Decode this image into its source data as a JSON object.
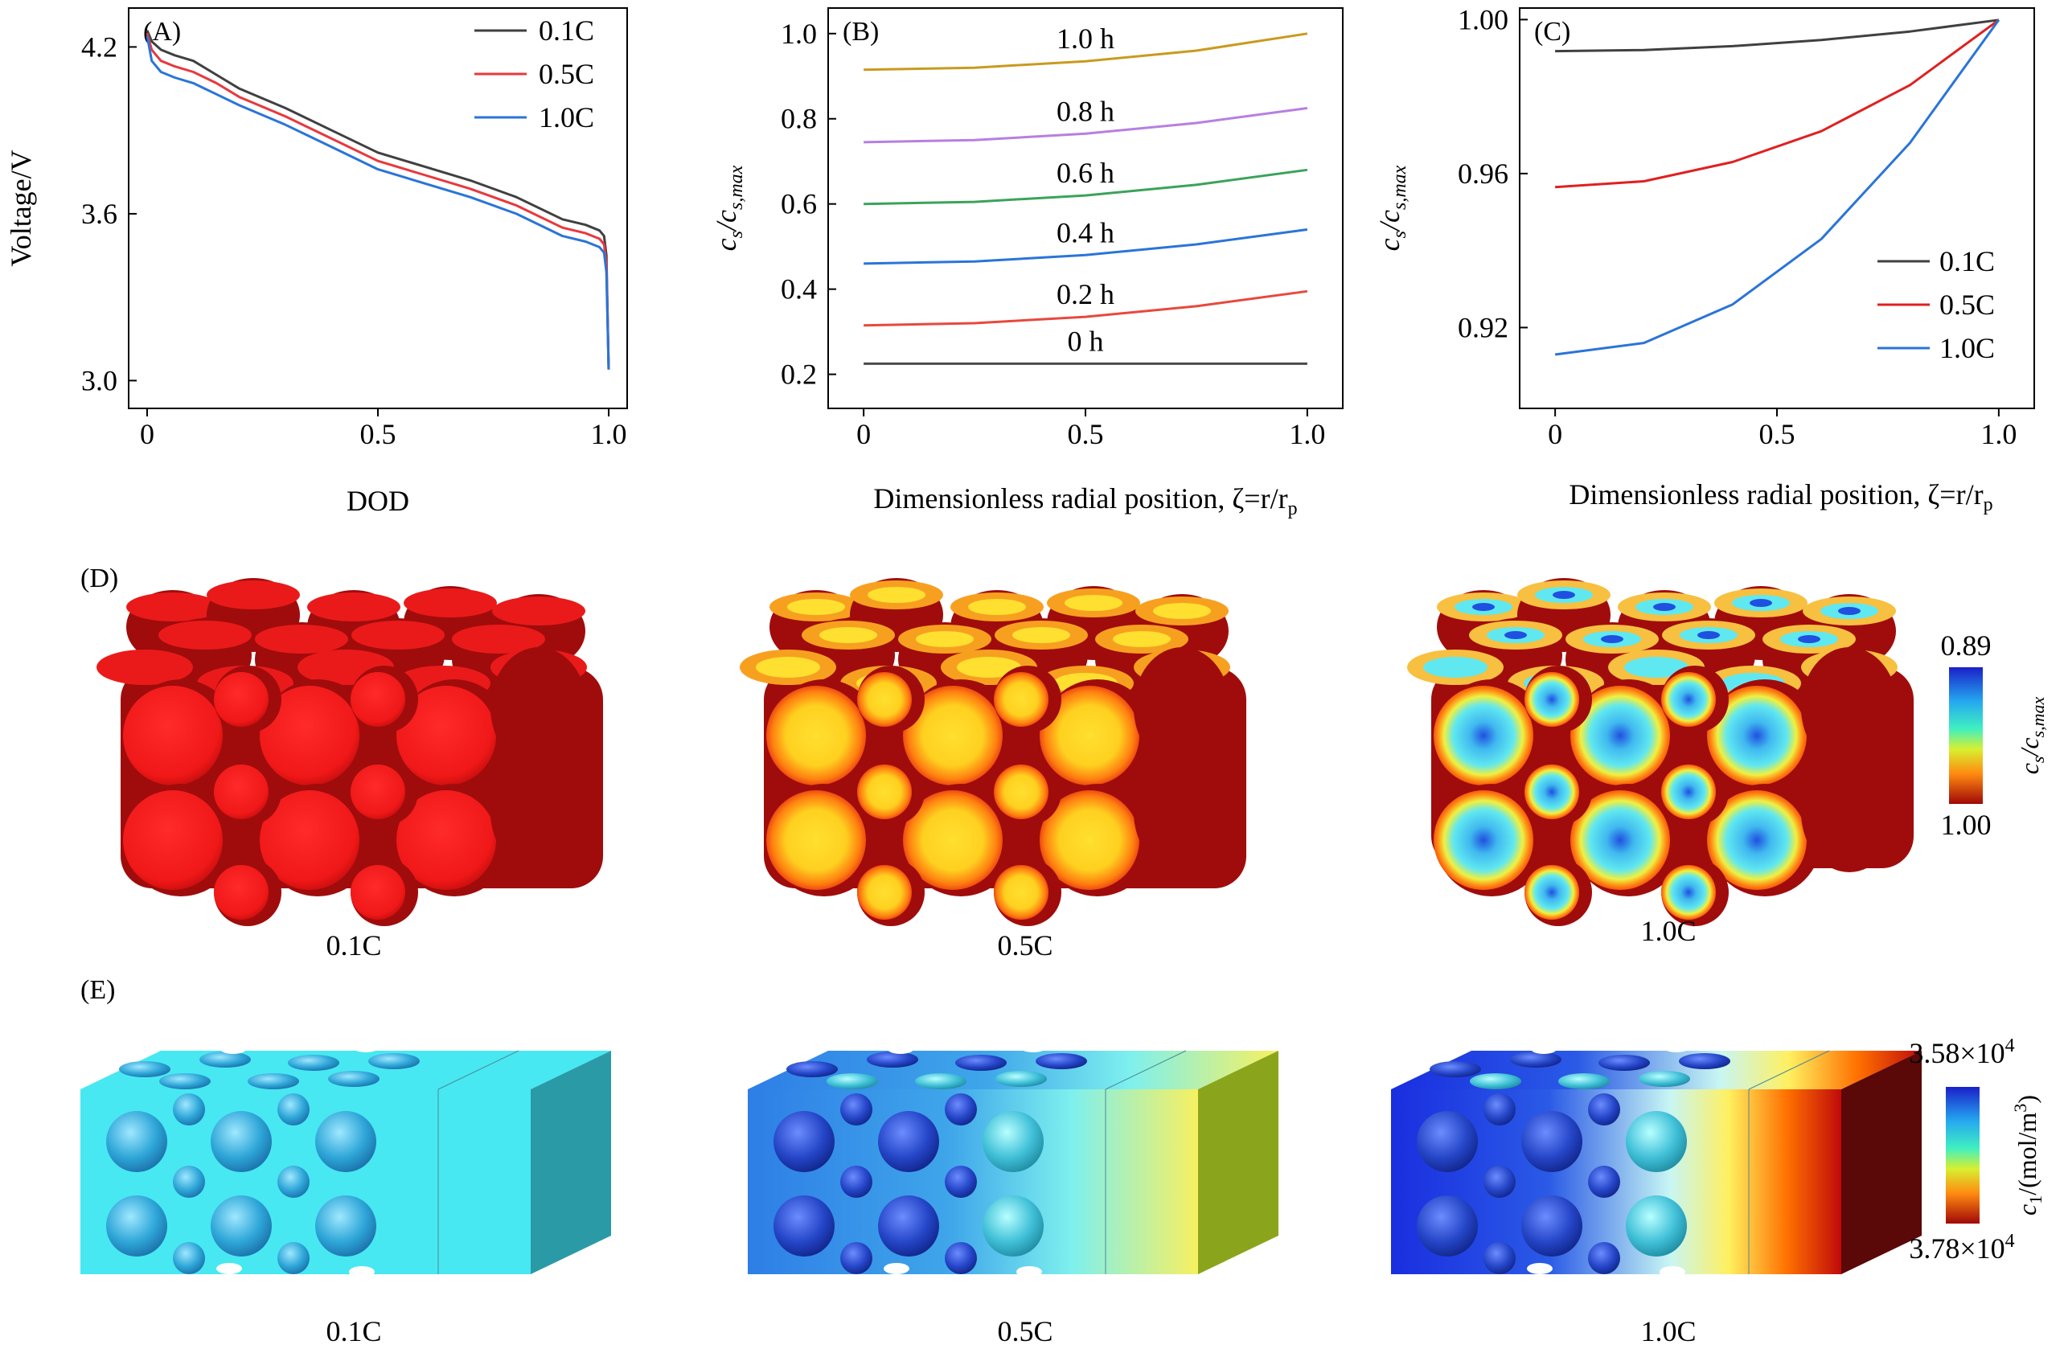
{
  "chart_data": [
    {
      "panel": "(A)",
      "type": "line",
      "xlabel": "DOD",
      "ylabel": "Voltage/V",
      "xlim": [
        -0.04,
        1.04
      ],
      "ylim": [
        2.9,
        4.34
      ],
      "xticks": [
        0,
        0.5,
        1.0
      ],
      "xtick_labels": [
        "0",
        "0.5",
        "1.0"
      ],
      "yticks": [
        3.0,
        3.6,
        4.2
      ],
      "ytick_labels": [
        "3.0",
        "3.6",
        "4.2"
      ],
      "legend": "top-right",
      "series": [
        {
          "name": "0.1C",
          "color": "#404040",
          "x": [
            0,
            0.01,
            0.03,
            0.06,
            0.1,
            0.15,
            0.2,
            0.3,
            0.4,
            0.5,
            0.6,
            0.7,
            0.8,
            0.9,
            0.95,
            0.98,
            0.99,
            0.995,
            1.0
          ],
          "y": [
            4.26,
            4.22,
            4.19,
            4.17,
            4.15,
            4.1,
            4.05,
            3.98,
            3.9,
            3.82,
            3.77,
            3.72,
            3.66,
            3.58,
            3.56,
            3.54,
            3.52,
            3.45,
            3.04
          ]
        },
        {
          "name": "0.5C",
          "color": "#e8383d",
          "x": [
            0,
            0.01,
            0.03,
            0.06,
            0.1,
            0.15,
            0.2,
            0.3,
            0.4,
            0.5,
            0.6,
            0.7,
            0.8,
            0.9,
            0.95,
            0.98,
            0.99,
            0.995,
            1.0
          ],
          "y": [
            4.25,
            4.19,
            4.15,
            4.13,
            4.11,
            4.07,
            4.02,
            3.95,
            3.87,
            3.79,
            3.74,
            3.69,
            3.63,
            3.55,
            3.53,
            3.51,
            3.49,
            3.42,
            3.04
          ]
        },
        {
          "name": "1.0C",
          "color": "#2a74d9",
          "x": [
            0,
            0.01,
            0.03,
            0.06,
            0.1,
            0.15,
            0.2,
            0.3,
            0.4,
            0.5,
            0.6,
            0.7,
            0.8,
            0.9,
            0.95,
            0.98,
            0.99,
            0.995,
            1.0
          ],
          "y": [
            4.24,
            4.15,
            4.11,
            4.09,
            4.07,
            4.03,
            3.99,
            3.92,
            3.84,
            3.76,
            3.71,
            3.66,
            3.6,
            3.52,
            3.5,
            3.48,
            3.46,
            3.39,
            3.04
          ]
        }
      ]
    },
    {
      "panel": "(B)",
      "type": "line",
      "xlabel": "Dimensionless radial position, ζ=r/r",
      "xlabel_sub": "p",
      "ylabel": "c",
      "ylabel_sub_1": "s",
      "ylabel_mid": "/c",
      "ylabel_sub_2": "s,max",
      "xlim": [
        -0.08,
        1.08
      ],
      "ylim": [
        0.12,
        1.06
      ],
      "xticks": [
        0,
        0.5,
        1.0
      ],
      "xtick_labels": [
        "0",
        "0.5",
        "1.0"
      ],
      "yticks": [
        0.2,
        0.4,
        0.6,
        0.8,
        1.0
      ],
      "ytick_labels": [
        "0.2",
        "0.4",
        "0.6",
        "0.8",
        "1.0"
      ],
      "series": [
        {
          "name": "0 h",
          "color": "#4a4a4a",
          "x": [
            0,
            0.25,
            0.5,
            0.75,
            1.0
          ],
          "y": [
            0.225,
            0.225,
            0.225,
            0.225,
            0.225
          ]
        },
        {
          "name": "0.2 h",
          "color": "#e8483d",
          "x": [
            0,
            0.25,
            0.5,
            0.75,
            1.0
          ],
          "y": [
            0.315,
            0.32,
            0.335,
            0.36,
            0.395
          ]
        },
        {
          "name": "0.4 h",
          "color": "#2a74d9",
          "x": [
            0,
            0.25,
            0.5,
            0.75,
            1.0
          ],
          "y": [
            0.46,
            0.465,
            0.48,
            0.505,
            0.54
          ]
        },
        {
          "name": "0.6 h",
          "color": "#3aa35a",
          "x": [
            0,
            0.25,
            0.5,
            0.75,
            1.0
          ],
          "y": [
            0.6,
            0.605,
            0.62,
            0.645,
            0.68
          ]
        },
        {
          "name": "0.8 h",
          "color": "#b77fe0",
          "x": [
            0,
            0.25,
            0.5,
            0.75,
            1.0
          ],
          "y": [
            0.745,
            0.75,
            0.765,
            0.79,
            0.825
          ]
        },
        {
          "name": "1.0 h",
          "color": "#c99a1e",
          "x": [
            0,
            0.25,
            0.5,
            0.75,
            1.0
          ],
          "y": [
            0.915,
            0.92,
            0.935,
            0.96,
            1.0
          ]
        }
      ]
    },
    {
      "panel": "(C)",
      "type": "line",
      "xlabel": "Dimensionless radial position, ζ=r/r",
      "xlabel_sub": "p",
      "ylabel": "c",
      "ylabel_sub_1": "s",
      "ylabel_mid": "/c",
      "ylabel_sub_2": "s,max",
      "xlim": [
        -0.08,
        1.08
      ],
      "ylim": [
        0.899,
        1.003
      ],
      "xticks": [
        0,
        0.5,
        1.0
      ],
      "xtick_labels": [
        "0",
        "0.5",
        "1.0"
      ],
      "yticks": [
        0.92,
        0.96,
        1.0
      ],
      "ytick_labels": [
        "0.92",
        "0.96",
        "1.00"
      ],
      "legend": "bottom-right",
      "series": [
        {
          "name": "0.1C",
          "color": "#404040",
          "x": [
            0,
            0.2,
            0.4,
            0.6,
            0.8,
            1.0
          ],
          "y": [
            0.9918,
            0.9921,
            0.9931,
            0.9947,
            0.9969,
            0.9999
          ]
        },
        {
          "name": "0.5C",
          "color": "#e02020",
          "x": [
            0,
            0.2,
            0.4,
            0.6,
            0.8,
            1.0
          ],
          "y": [
            0.9565,
            0.958,
            0.963,
            0.971,
            0.983,
            0.9999
          ]
        },
        {
          "name": "1.0C",
          "color": "#2a74d9",
          "x": [
            0,
            0.2,
            0.4,
            0.6,
            0.8,
            1.0
          ],
          "y": [
            0.913,
            0.916,
            0.926,
            0.943,
            0.968,
            0.9999
          ]
        }
      ]
    }
  ],
  "panel_d": {
    "label": "(D)",
    "captions": [
      "0.1C",
      "0.5C",
      "1.0C"
    ],
    "colorbar_top": "0.89",
    "colorbar_bottom": "1.00",
    "colorbar_title": "c",
    "colorbar_sub_1": "s",
    "colorbar_mid": "/c",
    "colorbar_sub_2": "s,max",
    "sphere_core_colors": [
      "#f01818",
      "#ffe030",
      "#60e8f0"
    ],
    "center_spot_colors": [
      "#f01818",
      "#ffd820",
      "#2050e0"
    ],
    "shell_color": "#a00c0c",
    "cut_rim_colors": [
      "#ea1a1a",
      "#f7a020",
      "#f7c040"
    ]
  },
  "panel_e": {
    "label": "(E)",
    "captions": [
      "0.1C",
      "0.5C",
      "1.0C"
    ],
    "colorbar_top": "3.58×10",
    "colorbar_top_exp": "4",
    "colorbar_bottom": "3.78×10",
    "colorbar_bottom_exp": "4",
    "colorbar_title": "c",
    "colorbar_sub_1": "1",
    "colorbar_unit": "/(mol/m",
    "colorbar_unit_exp": "3",
    "colorbar_unit_close": ")",
    "left_colors": [
      "#47e8f2",
      "#2e7ee6",
      "#1a2ee0"
    ],
    "mid_colors": [
      "#47e8f2",
      "#3fb9ea",
      "#6fdce8"
    ],
    "right_colors": [
      "#47e8f2",
      "#f8f060",
      "#ff5a00"
    ],
    "end_face_colors": [
      "#2a9aa6",
      "#8aa51c",
      "#5a0808"
    ]
  }
}
